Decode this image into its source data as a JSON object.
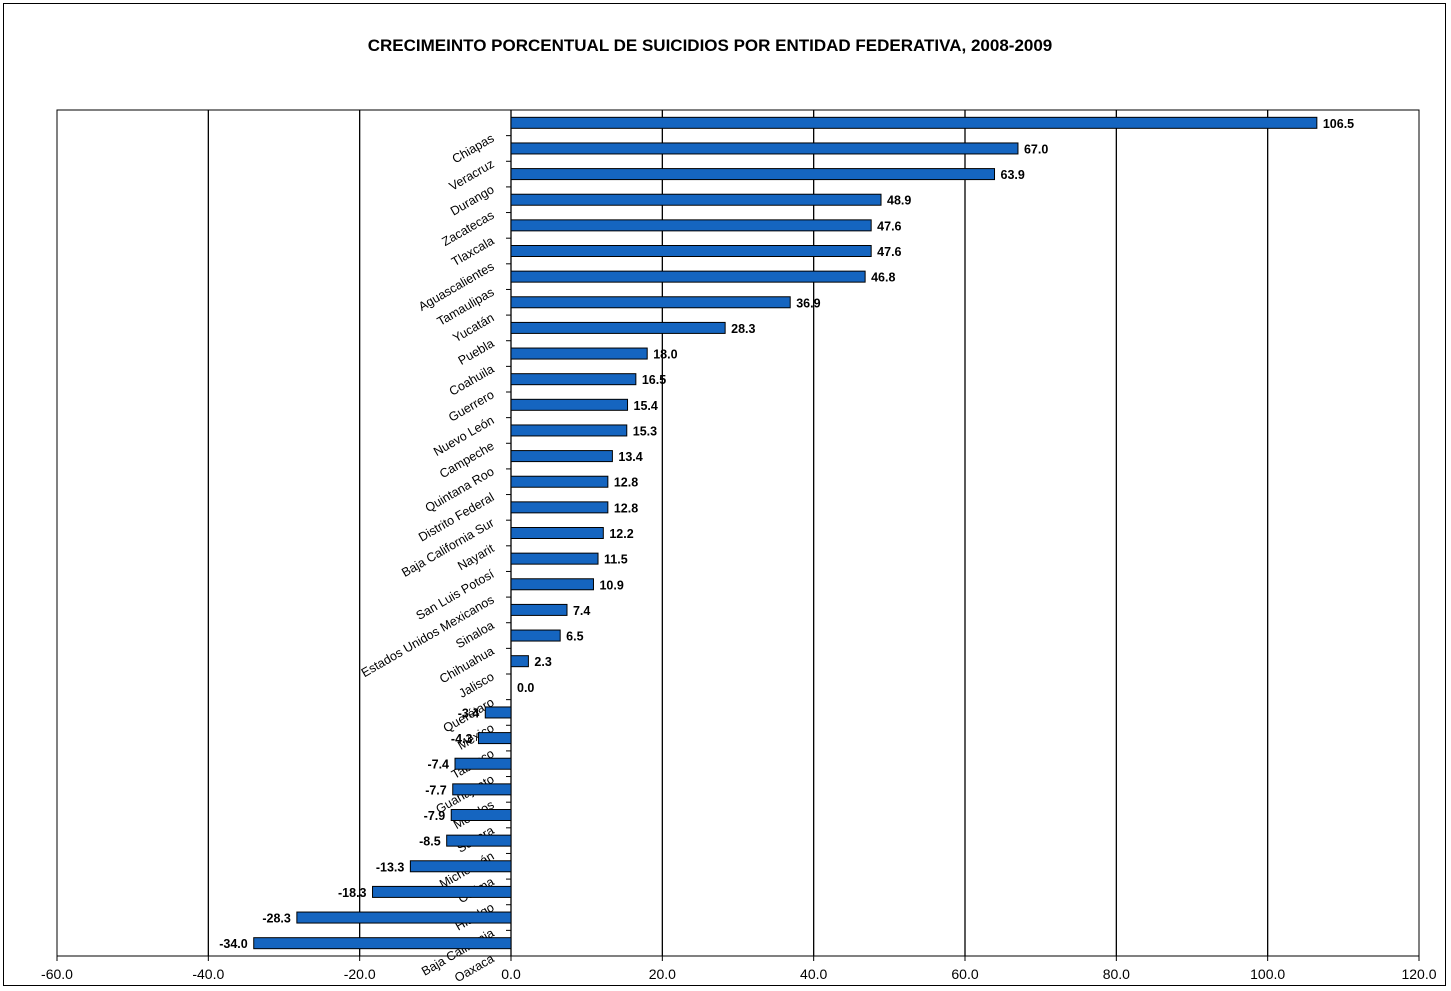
{
  "chart_data": {
    "type": "bar",
    "orientation": "horizontal",
    "title": "CRECIMEINTO PORCENTUAL DE SUICIDIOS POR ENTIDAD FEDERATIVA, 2008-2009",
    "xlabel": "",
    "ylabel": "",
    "xlim": [
      -60,
      120
    ],
    "x_ticks": [
      "-60.0",
      "-40.0",
      "-20.0",
      "0.0",
      "20.0",
      "40.0",
      "60.0",
      "80.0",
      "100.0",
      "120.0"
    ],
    "x_tick_values": [
      -60,
      -40,
      -20,
      0,
      20,
      40,
      60,
      80,
      100,
      120
    ],
    "grid": "vertical major gridlines",
    "legend": "none",
    "bar_color": "#1565C0",
    "categories": [
      "Chiapas",
      "Veracruz",
      "Durango",
      "Zacatecas",
      "Tlaxcala",
      "Aguascalientes",
      "Tamaulipas",
      "Yucatán",
      "Puebla",
      "Coahuila",
      "Guerrero",
      "Nuevo León",
      "Campeche",
      "Quintana Roo",
      "Distrito Federal",
      "Baja California Sur",
      "Nayarit",
      "San Luis Potosí",
      "Estados Unidos Mexicanos",
      "Sinaloa",
      "Chihuahua",
      "Jalisco",
      "Querétaro",
      "México",
      "Tabasco",
      "Guanajuato",
      "Morelos",
      "Sonora",
      "Michoacán",
      "Colima",
      "Hidalgo",
      "Baja California",
      "Oaxaca"
    ],
    "values": [
      106.5,
      67.0,
      63.9,
      48.9,
      47.6,
      47.6,
      46.8,
      36.9,
      28.3,
      18.0,
      16.5,
      15.4,
      15.3,
      13.4,
      12.8,
      12.8,
      12.2,
      11.5,
      10.9,
      7.4,
      6.5,
      2.3,
      0.0,
      -3.4,
      -4.3,
      -7.4,
      -7.7,
      -7.9,
      -8.5,
      -13.3,
      -18.3,
      -28.3,
      -34.0
    ],
    "value_labels": [
      "106.5",
      "67.0",
      "63.9",
      "48.9",
      "47.6",
      "47.6",
      "46.8",
      "36.9",
      "28.3",
      "18.0",
      "16.5",
      "15.4",
      "15.3",
      "13.4",
      "12.8",
      "12.8",
      "12.2",
      "11.5",
      "10.9",
      "7.4",
      "6.5",
      "2.3",
      "0.0",
      "-3.4",
      "-4.3",
      "-7.4",
      "-7.7",
      "-7.9",
      "-8.5",
      "-13.3",
      "-18.3",
      "-28.3",
      "-34.0"
    ]
  }
}
